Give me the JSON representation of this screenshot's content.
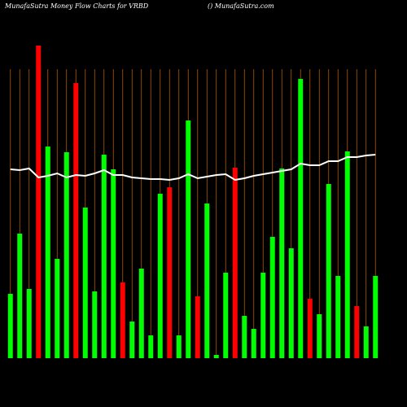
{
  "chart_data": {
    "type": "bar",
    "title": "MunafaSutra  Money Flow  Charts for VRBD",
    "subtitle": "() MunafaSutra.com",
    "categories": [
      null,
      null,
      null,
      null,
      null,
      null,
      null,
      null,
      null,
      null,
      null,
      null,
      null,
      null,
      null,
      null,
      null,
      null,
      null,
      null,
      null,
      null,
      null,
      null,
      null,
      null,
      null,
      null,
      null,
      null,
      null,
      null,
      null,
      null,
      null,
      null,
      null,
      null,
      null,
      null
    ],
    "values": [
      79,
      153,
      85,
      384,
      260,
      122,
      253,
      338,
      185,
      82,
      250,
      232,
      93,
      45,
      110,
      28,
      202,
      210,
      28,
      292,
      76,
      190,
      4,
      105,
      234,
      52,
      36,
      105,
      149,
      233,
      135,
      343,
      73,
      54,
      214,
      101,
      254,
      64,
      39,
      101
    ],
    "colors": [
      "#00ff00",
      "#00ff00",
      "#00ff00",
      "#ff0000",
      "#00ff00",
      "#00ff00",
      "#00ff00",
      "#ff0000",
      "#00ff00",
      "#00ff00",
      "#00ff00",
      "#00ff00",
      "#ff0000",
      "#00ff00",
      "#00ff00",
      "#00ff00",
      "#00ff00",
      "#ff0000",
      "#00ff00",
      "#00ff00",
      "#ff0000",
      "#00ff00",
      "#00ff00",
      "#00ff00",
      "#ff0000",
      "#00ff00",
      "#00ff00",
      "#00ff00",
      "#00ff00",
      "#00ff00",
      "#00ff00",
      "#00ff00",
      "#ff0000",
      "#00ff00",
      "#00ff00",
      "#00ff00",
      "#00ff00",
      "#ff0000",
      "#00ff00",
      "#00ff00"
    ],
    "line": {
      "color": "#ffffff",
      "values": [
        232,
        231,
        233,
        222,
        224,
        227,
        222,
        225,
        224,
        227,
        231,
        225,
        225,
        222,
        221,
        220,
        220,
        219,
        221,
        226,
        221,
        223,
        225,
        226,
        219,
        221,
        224,
        226,
        228,
        230,
        232,
        239,
        237,
        237,
        242,
        242,
        247,
        247,
        249,
        250
      ]
    },
    "ylim": [
      0,
      400
    ],
    "grid": true
  }
}
